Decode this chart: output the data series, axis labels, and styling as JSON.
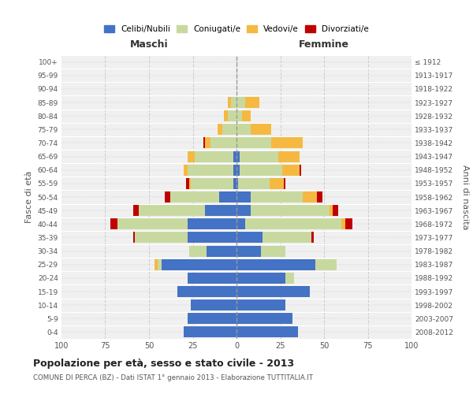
{
  "age_groups": [
    "0-4",
    "5-9",
    "10-14",
    "15-19",
    "20-24",
    "25-29",
    "30-34",
    "35-39",
    "40-44",
    "45-49",
    "50-54",
    "55-59",
    "60-64",
    "65-69",
    "70-74",
    "75-79",
    "80-84",
    "85-89",
    "90-94",
    "95-99",
    "100+"
  ],
  "birth_years": [
    "2008-2012",
    "2003-2007",
    "1998-2002",
    "1993-1997",
    "1988-1992",
    "1983-1987",
    "1978-1982",
    "1973-1977",
    "1968-1972",
    "1963-1967",
    "1958-1962",
    "1953-1957",
    "1948-1952",
    "1943-1947",
    "1938-1942",
    "1933-1937",
    "1928-1932",
    "1923-1927",
    "1918-1922",
    "1913-1917",
    "≤ 1912"
  ],
  "male": {
    "celibi": [
      30,
      28,
      26,
      34,
      28,
      43,
      17,
      28,
      28,
      18,
      10,
      2,
      2,
      2,
      0,
      0,
      0,
      0,
      0,
      0,
      0
    ],
    "coniugati": [
      0,
      0,
      0,
      0,
      0,
      2,
      10,
      30,
      40,
      38,
      28,
      24,
      26,
      22,
      15,
      8,
      5,
      3,
      0,
      0,
      0
    ],
    "vedovi": [
      0,
      0,
      0,
      0,
      0,
      2,
      0,
      0,
      0,
      0,
      0,
      1,
      2,
      4,
      3,
      3,
      2,
      2,
      0,
      0,
      0
    ],
    "divorziati": [
      0,
      0,
      0,
      0,
      0,
      0,
      0,
      1,
      4,
      3,
      3,
      2,
      0,
      0,
      1,
      0,
      0,
      0,
      0,
      0,
      0
    ]
  },
  "female": {
    "nubili": [
      35,
      32,
      28,
      42,
      28,
      45,
      14,
      15,
      5,
      8,
      8,
      1,
      2,
      2,
      0,
      0,
      0,
      0,
      0,
      0,
      0
    ],
    "coniugate": [
      0,
      0,
      0,
      0,
      5,
      12,
      14,
      28,
      55,
      45,
      30,
      18,
      24,
      22,
      20,
      8,
      3,
      5,
      0,
      0,
      0
    ],
    "vedove": [
      0,
      0,
      0,
      0,
      0,
      0,
      0,
      0,
      2,
      2,
      8,
      8,
      10,
      12,
      18,
      12,
      5,
      8,
      0,
      0,
      0
    ],
    "divorziate": [
      0,
      0,
      0,
      0,
      0,
      0,
      0,
      1,
      4,
      3,
      3,
      1,
      1,
      0,
      0,
      0,
      0,
      0,
      0,
      0,
      0
    ]
  },
  "colors": {
    "celibi": "#4472c4",
    "coniugati": "#c8d9a0",
    "vedovi": "#f5b942",
    "divorziati": "#c00000"
  },
  "legend_labels": [
    "Celibi/Nubili",
    "Coniugati/e",
    "Vedovi/e",
    "Divorziati/e"
  ],
  "title": "Popolazione per età, sesso e stato civile - 2013",
  "subtitle": "COMUNE DI PERCA (BZ) - Dati ISTAT 1° gennaio 2013 - Elaborazione TUTTITALIA.IT",
  "xlabel_left": "Maschi",
  "xlabel_right": "Femmine",
  "ylabel_left": "Fasce di età",
  "ylabel_right": "Anni di nascita",
  "xlim": 100,
  "bg_color": "#ffffff",
  "plot_bg": "#f0f0f0",
  "grid_color": "#cccccc"
}
